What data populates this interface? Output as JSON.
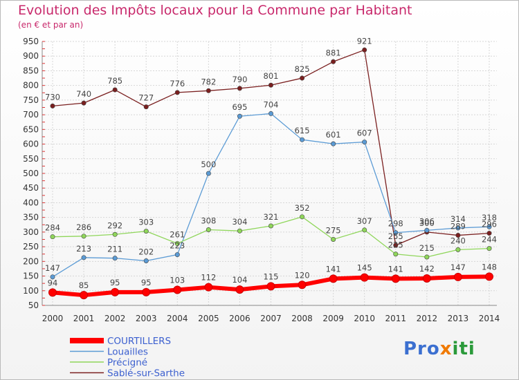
{
  "title": "Evolution des Impôts locaux pour la Commune par Habitant",
  "subtitle": "(en € et par an)",
  "logo_text": "Proxiti",
  "chart_data": {
    "type": "line",
    "categories": [
      "2000",
      "2001",
      "2002",
      "2003",
      "2004",
      "2005",
      "2006",
      "2007",
      "2008",
      "2009",
      "2010",
      "2011",
      "2012",
      "2013",
      "2014"
    ],
    "ylim": [
      50,
      950
    ],
    "yticks": [
      50,
      100,
      150,
      200,
      250,
      300,
      350,
      400,
      450,
      500,
      550,
      600,
      650,
      700,
      750,
      800,
      850,
      900,
      950
    ],
    "grid": true,
    "legend_position": "bottom-left",
    "series": [
      {
        "name": "COURTILLERS",
        "color": "#ff0000",
        "values": [
          94,
          85,
          95,
          95,
          103,
          112,
          104,
          115,
          120,
          141,
          145,
          141,
          142,
          147,
          148
        ]
      },
      {
        "name": "Louailles",
        "color": "#5b9bd5",
        "values": [
          147,
          213,
          211,
          202,
          223,
          500,
          695,
          704,
          615,
          601,
          607,
          298,
          306,
          314,
          318
        ]
      },
      {
        "name": "Précigné",
        "color": "#8fd65a",
        "values": [
          284,
          286,
          292,
          303,
          261,
          308,
          304,
          321,
          352,
          275,
          307,
          225,
          215,
          240,
          244
        ]
      },
      {
        "name": "Sablé-sur-Sarthe",
        "color": "#7a1f1f",
        "values": [
          730,
          740,
          785,
          727,
          776,
          782,
          790,
          801,
          825,
          881,
          921,
          255,
          300,
          289,
          296
        ]
      }
    ]
  }
}
